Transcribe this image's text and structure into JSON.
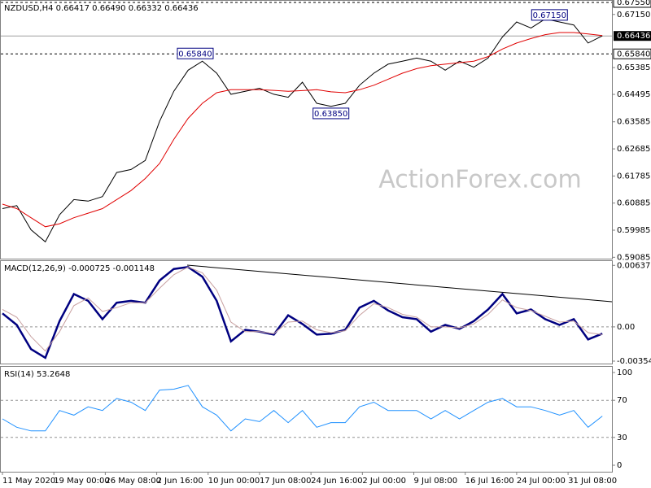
{
  "chart_data": [
    {
      "type": "line",
      "title": "NZDUSD,H4  0.66417 0.66490 0.66332 0.66436",
      "watermark": "ActionForex.com",
      "x": [
        0,
        10,
        20,
        30,
        40,
        50,
        60,
        70,
        80,
        90,
        100,
        110,
        120,
        130,
        140,
        150,
        160,
        170,
        180,
        190,
        200,
        210,
        220,
        230,
        240,
        250,
        260,
        270,
        280,
        290,
        300,
        310,
        320,
        330,
        340,
        350,
        360,
        370,
        380,
        390,
        400,
        410,
        420
      ],
      "series": [
        {
          "color": "#000000",
          "values": [
            0.607,
            0.608,
            0.6,
            0.596,
            0.605,
            0.61,
            0.6095,
            0.611,
            0.619,
            0.62,
            0.623,
            0.636,
            0.646,
            0.653,
            0.656,
            0.652,
            0.645,
            0.646,
            0.647,
            0.645,
            0.644,
            0.649,
            0.642,
            0.641,
            0.642,
            0.648,
            0.652,
            0.655,
            0.656,
            0.657,
            0.656,
            0.653,
            0.656,
            0.654,
            0.657,
            0.664,
            0.669,
            0.667,
            0.67,
            0.669,
            0.668,
            0.662,
            0.6644
          ]
        },
        {
          "color": "#e00000",
          "values": [
            0.6085,
            0.607,
            0.604,
            0.601,
            0.602,
            0.604,
            0.6055,
            0.607,
            0.61,
            0.613,
            0.617,
            0.622,
            0.63,
            0.637,
            0.642,
            0.6455,
            0.6465,
            0.6465,
            0.6465,
            0.6463,
            0.646,
            0.6462,
            0.6465,
            0.6458,
            0.6455,
            0.6465,
            0.648,
            0.65,
            0.652,
            0.6535,
            0.6545,
            0.655,
            0.6555,
            0.656,
            0.6575,
            0.66,
            0.662,
            0.6635,
            0.6648,
            0.6655,
            0.6655,
            0.665,
            0.6645
          ]
        }
      ],
      "xlim": [
        0,
        425
      ],
      "ylim": [
        0.5904,
        0.6763
      ],
      "grid": false,
      "yticks": [
        0.59085,
        0.59985,
        0.60885,
        0.61785,
        0.62685,
        0.63585,
        0.64495,
        0.65385,
        {
          "value": 0.6715,
          "label": "0.67150"
        }
      ],
      "dashed_levels": [
        {
          "value": 0.6755,
          "label": "0.67550"
        },
        {
          "value": 0.6584,
          "label": "0.65840"
        }
      ],
      "current_price": {
        "value": 0.66436,
        "label": "0.66436"
      },
      "annotations": [
        {
          "x": 135,
          "y": 0.6584,
          "text": "0.65840"
        },
        {
          "x": 230,
          "y": 0.6385,
          "text": "0.63850"
        },
        {
          "x": 383,
          "y": 0.6712,
          "text": "0.67150"
        }
      ]
    },
    {
      "type": "line",
      "title": "MACD(12,26,9) -0.000725 -0.001148",
      "x": [
        0,
        10,
        20,
        30,
        40,
        50,
        60,
        70,
        80,
        90,
        100,
        110,
        120,
        130,
        140,
        150,
        160,
        170,
        180,
        190,
        200,
        210,
        220,
        230,
        240,
        250,
        260,
        270,
        280,
        290,
        300,
        310,
        320,
        330,
        340,
        350,
        360,
        370,
        380,
        390,
        400,
        410,
        420
      ],
      "series": [
        {
          "color": "#000080",
          "width": 2.5,
          "values": [
            0.0014,
            0.0002,
            -0.0023,
            -0.0032,
            0.0006,
            0.0034,
            0.0027,
            0.0008,
            0.0025,
            0.0027,
            0.0025,
            0.0048,
            0.006,
            0.0062,
            0.0052,
            0.0027,
            -0.0015,
            -0.0003,
            -0.0005,
            -0.0008,
            0.0012,
            0.0003,
            -0.0008,
            -0.0007,
            -0.0003,
            0.002,
            0.0027,
            0.0017,
            0.001,
            0.0008,
            -0.0005,
            0.0002,
            -0.0002,
            0.0006,
            0.0018,
            0.0034,
            0.0014,
            0.0018,
            0.0008,
            0.0002,
            0.0008,
            -0.0013,
            -0.0007
          ]
        },
        {
          "color": "#c8a0a0",
          "width": 1,
          "values": [
            0.0018,
            0.001,
            -0.001,
            -0.0025,
            -0.0005,
            0.0022,
            0.003,
            0.0016,
            0.002,
            0.0025,
            0.0025,
            0.004,
            0.0054,
            0.0062,
            0.0056,
            0.0038,
            0.0005,
            -0.0005,
            -0.0005,
            -0.0007,
            0.0005,
            0.0006,
            -0.0003,
            -0.0006,
            -0.0004,
            0.0012,
            0.0024,
            0.002,
            0.0013,
            0.001,
            0.0,
            0.0,
            -0.0001,
            0.0003,
            0.0013,
            0.0028,
            0.002,
            0.0017,
            0.0011,
            0.0005,
            0.0006,
            -0.0006,
            -0.0008
          ]
        }
      ],
      "xlim": [
        0,
        425
      ],
      "ylim": [
        -0.0038,
        0.0069
      ],
      "grid": true,
      "yticks": [
        0.006371,
        {
          "value": 0,
          "label": "0.00"
        },
        -0.003546
      ]
    },
    {
      "type": "line",
      "title": "RSI(14) 53.2648",
      "x": [
        0,
        10,
        20,
        30,
        40,
        50,
        60,
        70,
        80,
        90,
        100,
        110,
        120,
        130,
        140,
        150,
        160,
        170,
        180,
        190,
        200,
        210,
        220,
        230,
        240,
        250,
        260,
        270,
        280,
        290,
        300,
        310,
        320,
        330,
        340,
        350,
        360,
        370,
        380,
        390,
        400,
        410,
        420
      ],
      "series": [
        {
          "color": "#1e90ff",
          "width": 1,
          "values": [
            50,
            41,
            37,
            37,
            59,
            54,
            63,
            59,
            72,
            68,
            59,
            81,
            82,
            86,
            63,
            54,
            37,
            50,
            47,
            59,
            46,
            59,
            41,
            46,
            46,
            63,
            68,
            59,
            59,
            59,
            50,
            59,
            50,
            59,
            68,
            72,
            63,
            63,
            59,
            54,
            59,
            41,
            53
          ]
        }
      ],
      "xlim": [
        0,
        425
      ],
      "ylim": [
        -7,
        107
      ],
      "grid": true,
      "yticks": [
        100,
        70,
        30,
        0
      ],
      "xticks": [
        {
          "value": 0,
          "label": "11 May 2020"
        },
        {
          "value": 36,
          "label": "19 May 00:00"
        },
        {
          "value": 72,
          "label": "26 May 08:00"
        },
        {
          "value": 108,
          "label": "2 Jun 16:00"
        },
        {
          "value": 144,
          "label": "10 Jun 00:00"
        },
        {
          "value": 180,
          "label": "17 Jun 08:00"
        },
        {
          "value": 216,
          "label": "24 Jun 16:00"
        },
        {
          "value": 252,
          "label": "2 Jul 00:00"
        },
        {
          "value": 288,
          "label": "9 Jul 08:00"
        },
        {
          "value": 324,
          "label": "16 Jul 16:00"
        },
        {
          "value": 360,
          "label": "24 Jul 00:00"
        },
        {
          "value": 396,
          "label": "31 Jul 08:00"
        }
      ]
    }
  ]
}
